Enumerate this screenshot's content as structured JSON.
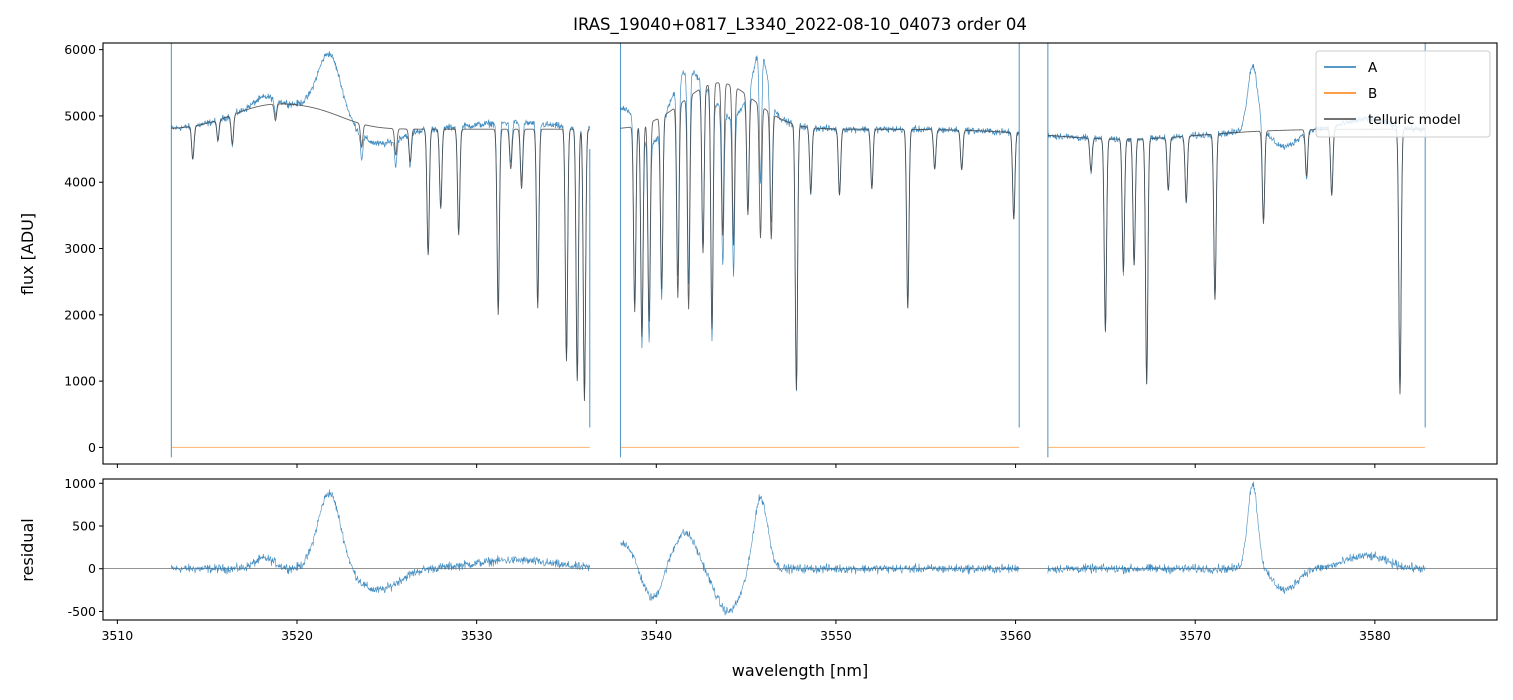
{
  "chart_data": [
    {
      "type": "line",
      "title": "IRAS_19040+0817_L3340_2022-08-10_04073  order 04",
      "xlabel": "",
      "ylabel": "flux [ADU]",
      "xlim": [
        3509.2,
        3586.8
      ],
      "ylim": [
        -250,
        6100
      ],
      "yticks": [
        "0",
        "1000",
        "2000",
        "3000",
        "4000",
        "5000",
        "6000"
      ],
      "ytick_values": [
        0,
        1000,
        2000,
        3000,
        4000,
        5000,
        6000
      ],
      "legend": {
        "position": "top-right",
        "entries": [
          "A",
          "B",
          "telluric model"
        ]
      },
      "segments": [
        {
          "x_start": 3513.0,
          "x_end": 3536.3
        },
        {
          "x_start": 3538.0,
          "x_end": 3560.2
        },
        {
          "x_start": 3561.8,
          "x_end": 3582.8
        }
      ],
      "absorption_lines": [
        {
          "x": 3514.2,
          "depth": 500
        },
        {
          "x": 3515.6,
          "depth": 300
        },
        {
          "x": 3516.4,
          "depth": 450
        },
        {
          "x": 3518.8,
          "depth": 250
        },
        {
          "x": 3523.6,
          "depth": 350
        },
        {
          "x": 3525.5,
          "depth": 400
        },
        {
          "x": 3526.3,
          "depth": 500
        },
        {
          "x": 3527.3,
          "depth": 1900
        },
        {
          "x": 3528.0,
          "depth": 1200
        },
        {
          "x": 3529.0,
          "depth": 1600
        },
        {
          "x": 3531.2,
          "depth": 2800
        },
        {
          "x": 3531.9,
          "depth": 600
        },
        {
          "x": 3532.5,
          "depth": 900
        },
        {
          "x": 3533.4,
          "depth": 2700
        },
        {
          "x": 3535.0,
          "depth": 3500
        },
        {
          "x": 3535.6,
          "depth": 3800
        },
        {
          "x": 3536.0,
          "depth": 4100
        },
        {
          "x": 3538.8,
          "depth": 2800
        },
        {
          "x": 3539.2,
          "depth": 3200
        },
        {
          "x": 3539.6,
          "depth": 3000
        },
        {
          "x": 3540.3,
          "depth": 2600
        },
        {
          "x": 3541.2,
          "depth": 2900
        },
        {
          "x": 3541.8,
          "depth": 3200
        },
        {
          "x": 3542.6,
          "depth": 2500
        },
        {
          "x": 3543.1,
          "depth": 3700
        },
        {
          "x": 3543.7,
          "depth": 2300
        },
        {
          "x": 3544.3,
          "depth": 2400
        },
        {
          "x": 3545.1,
          "depth": 1800
        },
        {
          "x": 3545.8,
          "depth": 2000
        },
        {
          "x": 3546.4,
          "depth": 1900
        },
        {
          "x": 3547.8,
          "depth": 4000
        },
        {
          "x": 3548.6,
          "depth": 1000
        },
        {
          "x": 3550.2,
          "depth": 1000
        },
        {
          "x": 3552.0,
          "depth": 900
        },
        {
          "x": 3554.0,
          "depth": 2700
        },
        {
          "x": 3555.5,
          "depth": 600
        },
        {
          "x": 3557.0,
          "depth": 600
        },
        {
          "x": 3559.9,
          "depth": 1300
        },
        {
          "x": 3564.2,
          "depth": 500
        },
        {
          "x": 3565.0,
          "depth": 2900
        },
        {
          "x": 3566.0,
          "depth": 2000
        },
        {
          "x": 3566.6,
          "depth": 1900
        },
        {
          "x": 3567.3,
          "depth": 3700
        },
        {
          "x": 3568.5,
          "depth": 800
        },
        {
          "x": 3569.5,
          "depth": 1000
        },
        {
          "x": 3571.1,
          "depth": 2500
        },
        {
          "x": 3573.8,
          "depth": 1400
        },
        {
          "x": 3576.2,
          "depth": 700
        },
        {
          "x": 3577.6,
          "depth": 1000
        },
        {
          "x": 3581.4,
          "depth": 4000
        }
      ]
    },
    {
      "type": "line",
      "title": "",
      "xlabel": "wavelength [nm]",
      "ylabel": "residual",
      "xlim": [
        3509.2,
        3586.8
      ],
      "ylim": [
        -600,
        1050
      ],
      "xticks": [
        "3510",
        "3520",
        "3530",
        "3540",
        "3550",
        "3560",
        "3570",
        "3580"
      ],
      "xtick_values": [
        3510,
        3520,
        3530,
        3540,
        3550,
        3560,
        3570,
        3580
      ],
      "yticks": [
        "-500",
        "0",
        "500",
        "1000"
      ],
      "ytick_values": [
        -500,
        0,
        500,
        1000
      ],
      "reference_line": 0
    }
  ],
  "colors": {
    "series_a": "#1f77b4",
    "series_b": "#ff7f0e",
    "telluric": "#444444",
    "axes": "#000000"
  }
}
